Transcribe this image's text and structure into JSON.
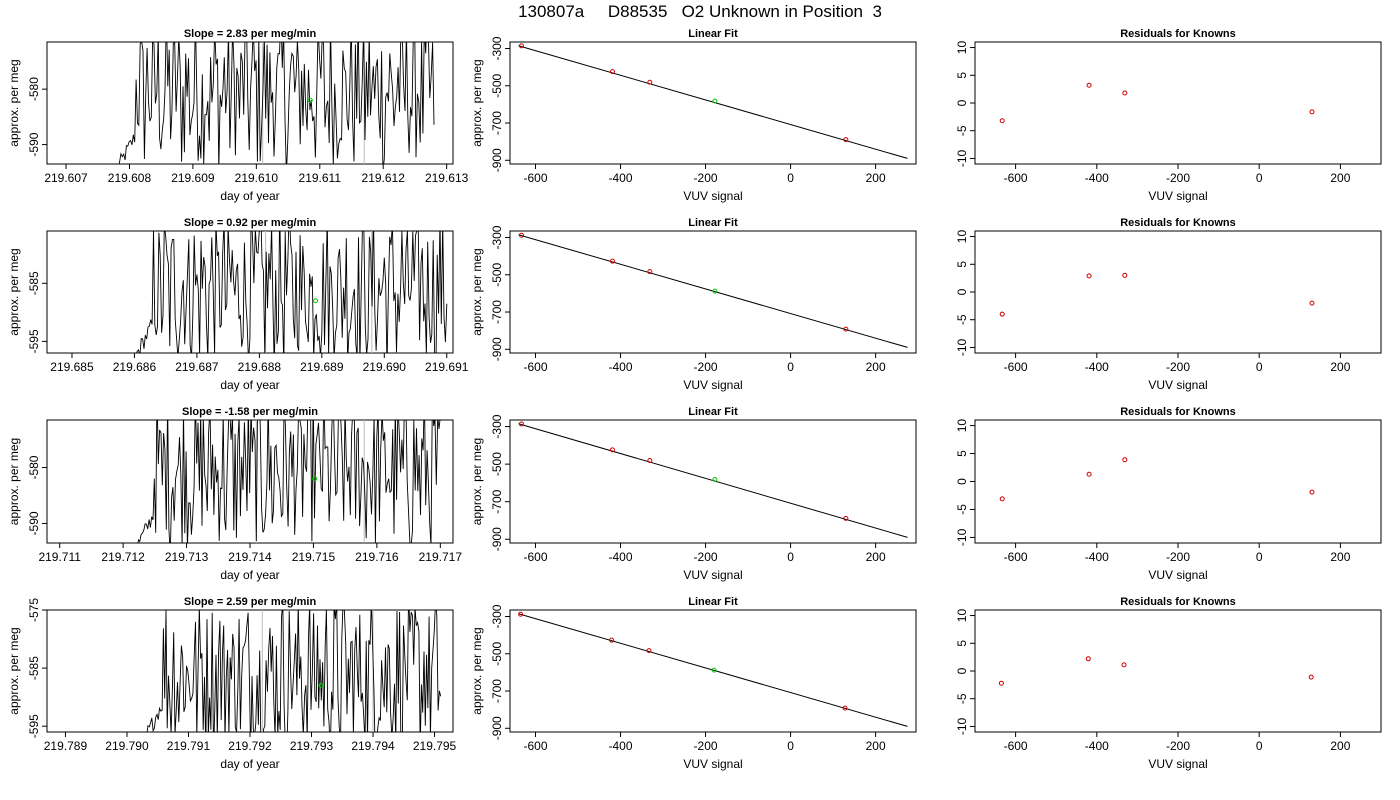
{
  "figure": {
    "title": "130807a     D88535   O2 Unknown in Position  3"
  },
  "chart_data": [
    {
      "type": "line",
      "row": 0,
      "title": "Slope =  2.83  per meg/min",
      "xlabel": "day of year",
      "ylabel": "approx. per meg",
      "xlim": [
        219.6067,
        219.6131
      ],
      "ylim": [
        -593.5,
        -571.5
      ],
      "xticks": [
        219.607,
        219.608,
        219.609,
        219.61,
        219.611,
        219.612,
        219.613
      ],
      "xtick_labels": [
        "219.607",
        "219.608",
        "219.609",
        "219.610",
        "219.611",
        "219.612",
        "219.613"
      ],
      "yticks": [
        -580,
        -590
      ],
      "ytick_labels": [
        "-580",
        "-590"
      ],
      "vlines": [
        219.6101,
        219.6117
      ],
      "x_start": 219.6078,
      "x_end": 219.6128,
      "y_mean": -580.5,
      "marker": {
        "x": 219.61085,
        "y": -582,
        "color": "#00cc00"
      }
    },
    {
      "type": "scatter",
      "row": 0,
      "title": "Linear Fit",
      "xlabel": "VUV signal",
      "ylabel": "approx. per meg",
      "xlim": [
        -660,
        295
      ],
      "ylim": [
        -920,
        -265
      ],
      "xticks": [
        -600,
        -400,
        -200,
        0,
        200
      ],
      "xtick_labels": [
        "-600",
        "-400",
        "-200",
        "0",
        "200"
      ],
      "yticks": [
        -300,
        -500,
        -700,
        -900
      ],
      "ytick_labels": [
        "-300",
        "-500",
        "-700",
        "-900"
      ],
      "fit_line": [
        [
          -640,
          -285
        ],
        [
          275,
          -890
        ]
      ],
      "knowns": [
        [
          -633,
          -286
        ],
        [
          -419,
          -424
        ],
        [
          -331,
          -481
        ],
        [
          130,
          -789
        ]
      ],
      "unknown": {
        "x": -178,
        "y": -582
      }
    },
    {
      "type": "scatter",
      "row": 0,
      "title": "Residuals for Knowns",
      "xlabel": "VUV signal",
      "ylabel": "",
      "xlim": [
        -700,
        300
      ],
      "ylim": [
        -11,
        11
      ],
      "xticks": [
        -600,
        -400,
        -200,
        0,
        200
      ],
      "xtick_labels": [
        "-600",
        "-400",
        "-200",
        "0",
        "200"
      ],
      "yticks": [
        10,
        5,
        0,
        -5,
        -10
      ],
      "ytick_labels": [
        "10",
        "5",
        "0",
        "-5",
        "-10"
      ],
      "points": [
        [
          -633,
          -3.2
        ],
        [
          -419,
          3.2
        ],
        [
          -331,
          1.8
        ],
        [
          130,
          -1.6
        ]
      ]
    },
    {
      "type": "line",
      "row": 1,
      "title": "Slope =  0.92  per meg/min",
      "xlabel": "day of year",
      "ylabel": "approx. per meg",
      "xlim": [
        219.6846,
        219.6911
      ],
      "ylim": [
        -597,
        -576
      ],
      "xticks": [
        219.685,
        219.686,
        219.687,
        219.688,
        219.689,
        219.69,
        219.691
      ],
      "xtick_labels": [
        "219.685",
        "219.686",
        "219.687",
        "219.688",
        "219.689",
        "219.690",
        "219.691"
      ],
      "yticks": [
        -585,
        -595
      ],
      "ytick_labels": [
        "-585",
        "-595"
      ],
      "vlines": [
        219.6881,
        219.6898
      ],
      "x_start": 219.686,
      "x_end": 219.691,
      "y_mean": -586,
      "marker": {
        "x": 219.6889,
        "y": -588,
        "color": "#00cc00"
      }
    },
    {
      "type": "scatter",
      "row": 1,
      "title": "Linear Fit",
      "xlabel": "VUV signal",
      "ylabel": "approx. per meg",
      "xlim": [
        -660,
        295
      ],
      "ylim": [
        -920,
        -265
      ],
      "xticks": [
        -600,
        -400,
        -200,
        0,
        200
      ],
      "xtick_labels": [
        "-600",
        "-400",
        "-200",
        "0",
        "200"
      ],
      "yticks": [
        -300,
        -500,
        -700,
        -900
      ],
      "ytick_labels": [
        "-300",
        "-500",
        "-700",
        "-900"
      ],
      "fit_line": [
        [
          -640,
          -285
        ],
        [
          275,
          -890
        ]
      ],
      "knowns": [
        [
          -633,
          -288
        ],
        [
          -419,
          -427
        ],
        [
          -331,
          -483
        ],
        [
          130,
          -792
        ]
      ],
      "unknown": {
        "x": -178,
        "y": -588
      }
    },
    {
      "type": "scatter",
      "row": 1,
      "title": "Residuals for Knowns",
      "xlabel": "VUV signal",
      "ylabel": "",
      "xlim": [
        -700,
        300
      ],
      "ylim": [
        -11,
        11
      ],
      "xticks": [
        -600,
        -400,
        -200,
        0,
        200
      ],
      "xtick_labels": [
        "-600",
        "-400",
        "-200",
        "0",
        "200"
      ],
      "yticks": [
        10,
        5,
        0,
        -5,
        -10
      ],
      "ytick_labels": [
        "10",
        "5",
        "0",
        "-5",
        "-10"
      ],
      "points": [
        [
          -633,
          -4.0
        ],
        [
          -419,
          2.9
        ],
        [
          -331,
          3.0
        ],
        [
          130,
          -2.0
        ]
      ]
    },
    {
      "type": "line",
      "row": 2,
      "title": "Slope =  -1.58  per meg/min",
      "xlabel": "day of year",
      "ylabel": "approx. per meg",
      "xlim": [
        219.7108,
        219.7172
      ],
      "ylim": [
        -593.5,
        -571.5
      ],
      "xticks": [
        219.711,
        219.712,
        219.713,
        219.714,
        219.715,
        219.716,
        219.717
      ],
      "xtick_labels": [
        "219.711",
        "219.712",
        "219.713",
        "219.714",
        "219.715",
        "219.716",
        "219.717"
      ],
      "yticks": [
        -580,
        -590
      ],
      "ytick_labels": [
        "-580",
        "-590"
      ],
      "vlines": [
        219.7141,
        219.7158
      ],
      "x_start": 219.7122,
      "x_end": 219.717,
      "y_mean": -580.5,
      "marker": {
        "x": 219.71502,
        "y": -582,
        "color": "#00cc00"
      }
    },
    {
      "type": "scatter",
      "row": 2,
      "title": "Linear Fit",
      "xlabel": "VUV signal",
      "ylabel": "approx. per meg",
      "xlim": [
        -660,
        295
      ],
      "ylim": [
        -920,
        -265
      ],
      "xticks": [
        -600,
        -400,
        -200,
        0,
        200
      ],
      "xtick_labels": [
        "-600",
        "-400",
        "-200",
        "0",
        "200"
      ],
      "yticks": [
        -300,
        -500,
        -700,
        -900
      ],
      "ytick_labels": [
        "-300",
        "-500",
        "-700",
        "-900"
      ],
      "fit_line": [
        [
          -640,
          -285
        ],
        [
          275,
          -890
        ]
      ],
      "knowns": [
        [
          -633,
          -286
        ],
        [
          -419,
          -424
        ],
        [
          -331,
          -481
        ],
        [
          130,
          -789
        ]
      ],
      "unknown": {
        "x": -178,
        "y": -582
      }
    },
    {
      "type": "scatter",
      "row": 2,
      "title": "Residuals for Knowns",
      "xlabel": "VUV signal",
      "ylabel": "",
      "xlim": [
        -700,
        300
      ],
      "ylim": [
        -11,
        11
      ],
      "xticks": [
        -600,
        -400,
        -200,
        0,
        200
      ],
      "xtick_labels": [
        "-600",
        "-400",
        "-200",
        "0",
        "200"
      ],
      "yticks": [
        10,
        5,
        0,
        -5,
        -10
      ],
      "ytick_labels": [
        "10",
        "5",
        "0",
        "-5",
        "-10"
      ],
      "points": [
        [
          -633,
          -3.1
        ],
        [
          -419,
          1.3
        ],
        [
          -331,
          3.9
        ],
        [
          130,
          -1.9
        ]
      ]
    },
    {
      "type": "line",
      "row": 3,
      "title": "Slope =  2.59  per meg/min",
      "xlabel": "day of year",
      "ylabel": "approx. per meg",
      "xlim": [
        219.7887,
        219.7953
      ],
      "ylim": [
        -596,
        -575
      ],
      "xticks": [
        219.789,
        219.79,
        219.791,
        219.792,
        219.793,
        219.794,
        219.795
      ],
      "xtick_labels": [
        "219.789",
        "219.790",
        "219.791",
        "219.792",
        "219.793",
        "219.794",
        "219.795"
      ],
      "yticks": [
        -575,
        -585,
        -595
      ],
      "ytick_labels": [
        "-575",
        "-585",
        "-595"
      ],
      "vlines": [
        219.7922,
        219.794
      ],
      "x_start": 219.7903,
      "x_end": 219.7951,
      "y_mean": -586,
      "marker": {
        "x": 219.79315,
        "y": -588,
        "color": "#00cc00"
      }
    },
    {
      "type": "scatter",
      "row": 3,
      "title": "Linear Fit",
      "xlabel": "VUV signal",
      "ylabel": "approx. per meg",
      "xlim": [
        -660,
        295
      ],
      "ylim": [
        -920,
        -265
      ],
      "xticks": [
        -600,
        -400,
        -200,
        0,
        200
      ],
      "xtick_labels": [
        "-600",
        "-400",
        "-200",
        "0",
        "200"
      ],
      "yticks": [
        -300,
        -500,
        -700,
        -900
      ],
      "ytick_labels": [
        "-300",
        "-500",
        "-700",
        "-900"
      ],
      "fit_line": [
        [
          -640,
          -285
        ],
        [
          275,
          -890
        ]
      ],
      "knowns": [
        [
          -635,
          -288
        ],
        [
          -421,
          -427
        ],
        [
          -333,
          -483
        ],
        [
          128,
          -792
        ]
      ],
      "unknown": {
        "x": -180,
        "y": -588
      }
    },
    {
      "type": "scatter",
      "row": 3,
      "title": "Residuals for Knowns",
      "xlabel": "VUV signal",
      "ylabel": "",
      "xlim": [
        -700,
        300
      ],
      "ylim": [
        -11,
        11
      ],
      "xticks": [
        -600,
        -400,
        -200,
        0,
        200
      ],
      "xtick_labels": [
        "-600",
        "-400",
        "-200",
        "0",
        "200"
      ],
      "yticks": [
        10,
        5,
        0,
        -5,
        -10
      ],
      "ytick_labels": [
        "10",
        "5",
        "0",
        "-5",
        "-10"
      ],
      "points": [
        [
          -635,
          -2.2
        ],
        [
          -421,
          2.2
        ],
        [
          -333,
          1.1
        ],
        [
          128,
          -1.1
        ]
      ]
    }
  ],
  "colors": {
    "line": "#000000",
    "vline": "#bbbbbb",
    "known_point": "#cc0000",
    "unknown_point": "#00cc00",
    "fit_line": "#000000"
  }
}
